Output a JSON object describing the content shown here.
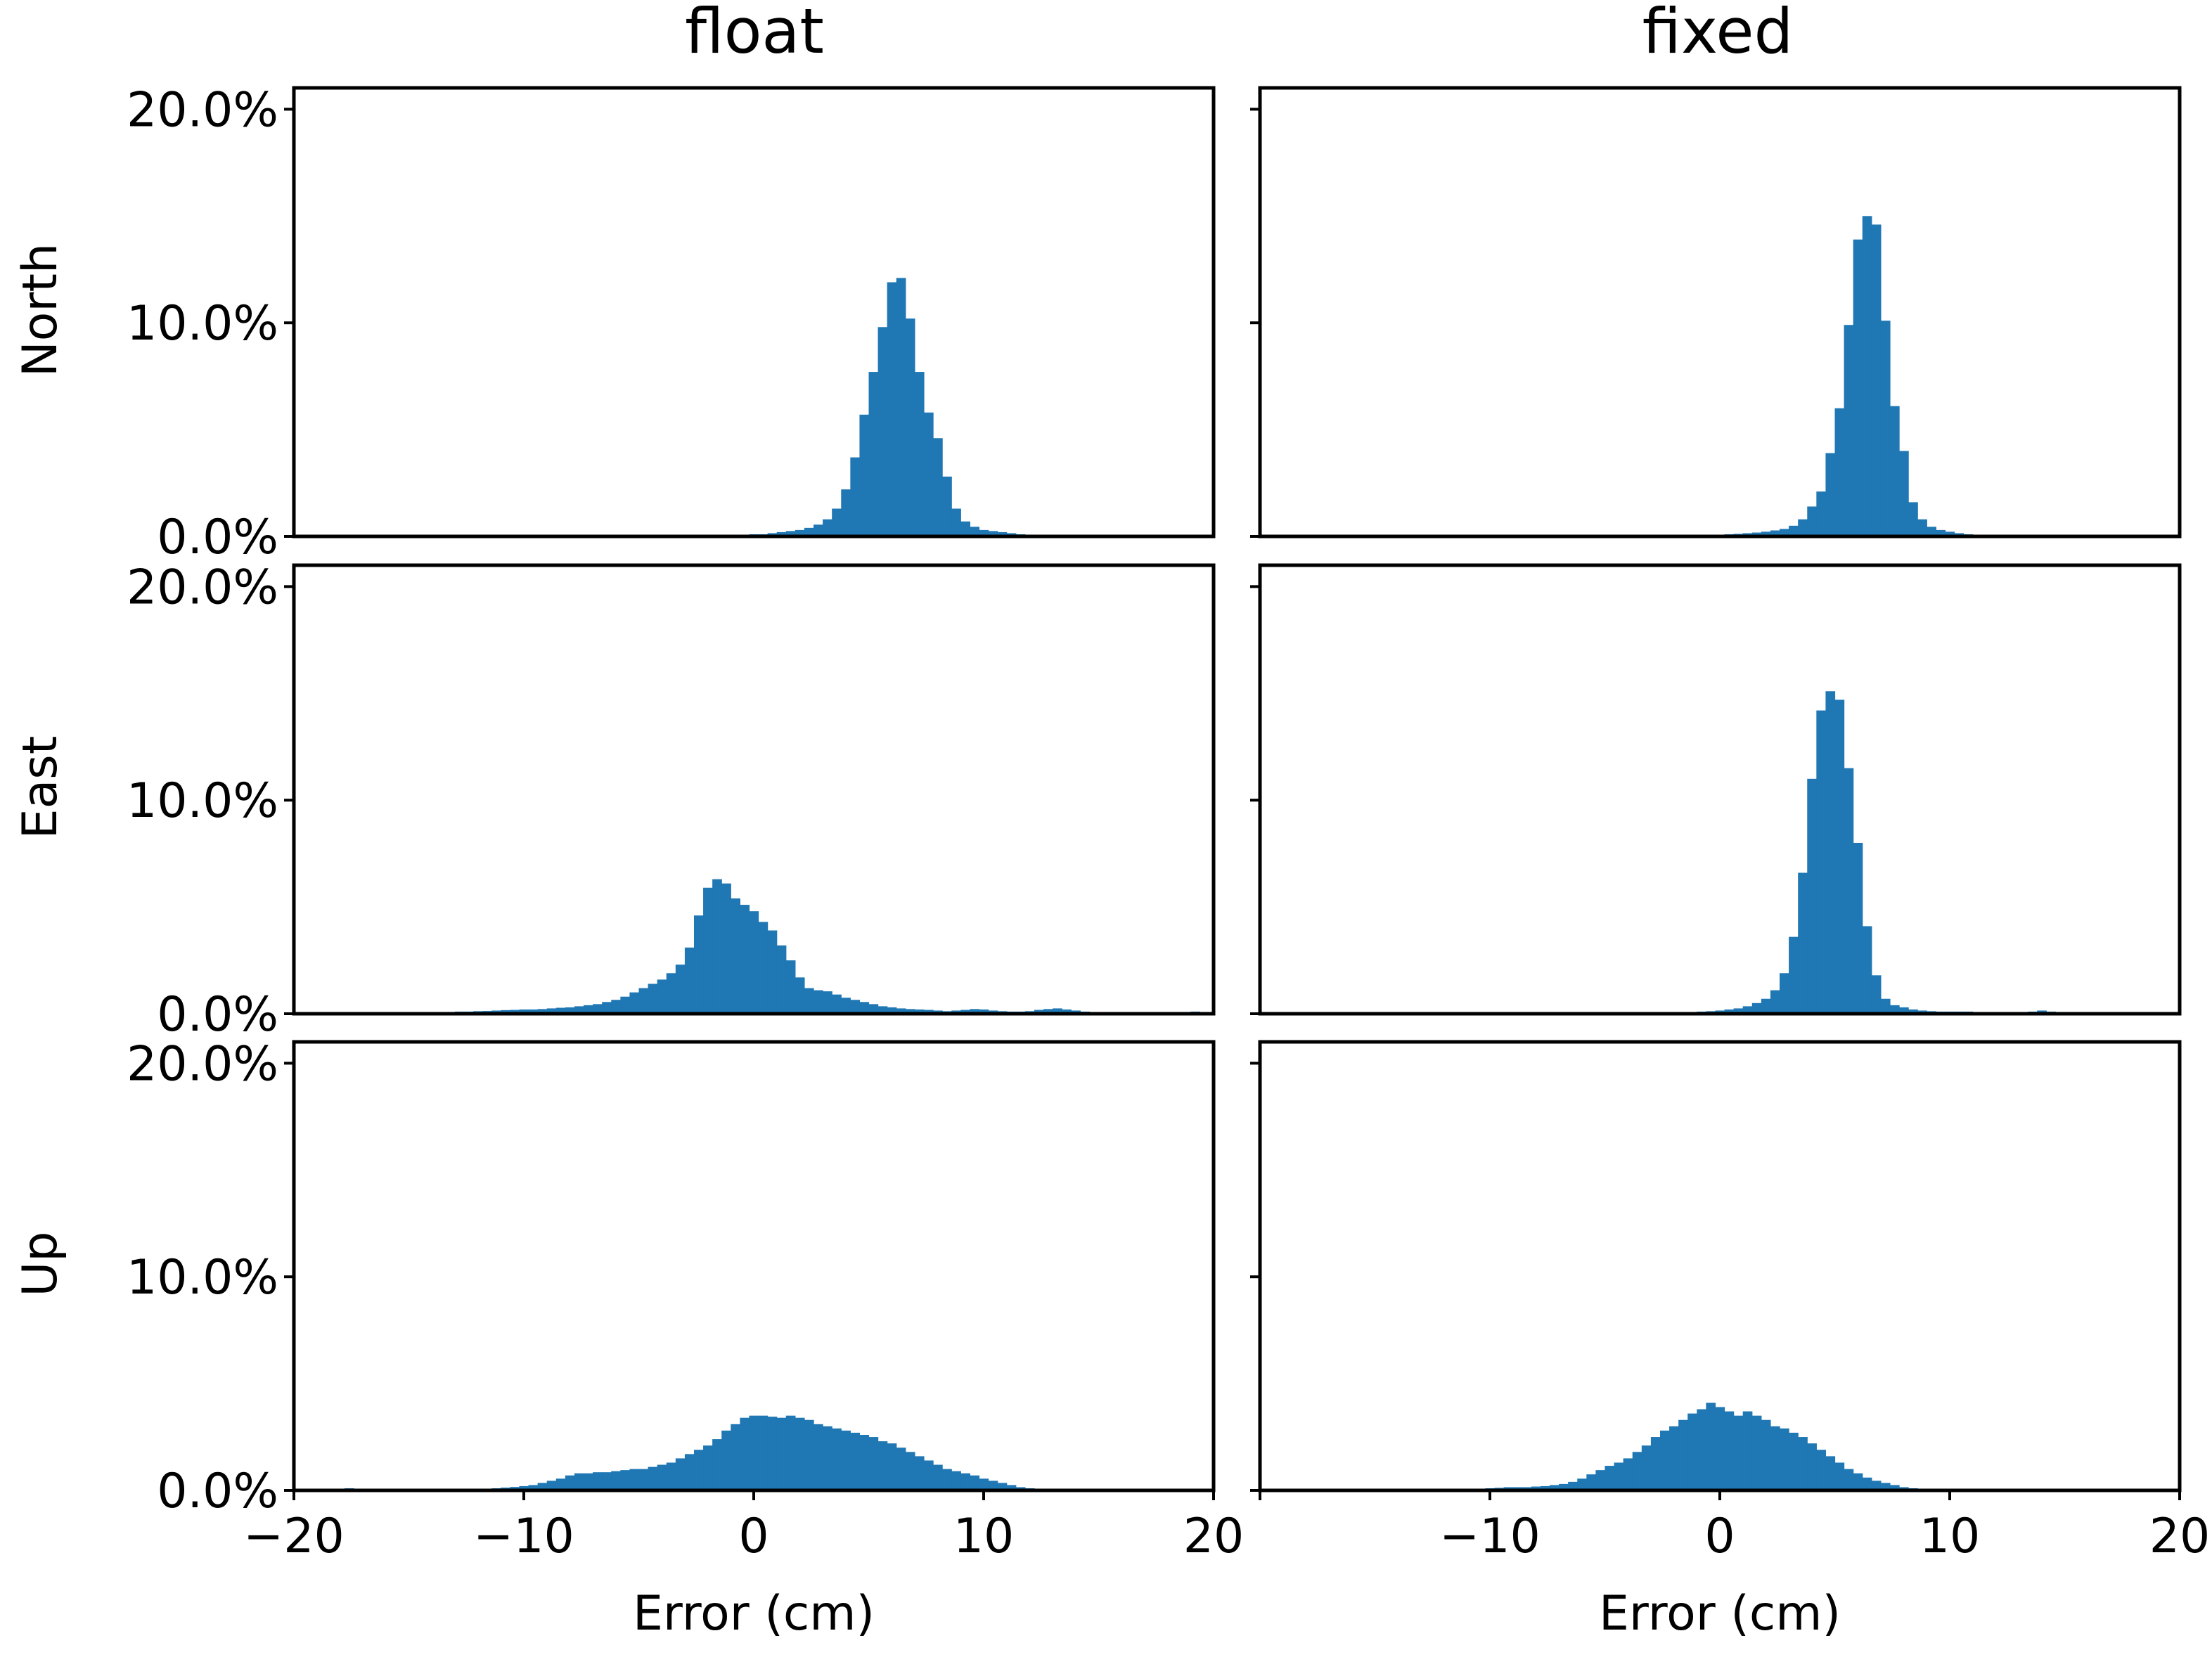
{
  "figure": {
    "type": "histogram-grid",
    "col_titles": [
      "float",
      "fixed"
    ],
    "row_labels": [
      "North",
      "East",
      "Up"
    ],
    "xlabel": "Error (cm)",
    "bar_color": "#1f77b4"
  },
  "chart_data": [
    {
      "type": "bar",
      "title": "float",
      "ylabel": "North",
      "xlabel": "",
      "xlim": [
        -20,
        20
      ],
      "ylim": [
        0,
        21
      ],
      "bin_start": -25.0,
      "bin_width": 0.4,
      "xticks": [],
      "xtick_labels": [],
      "yticks": [
        0,
        10,
        20
      ],
      "ytick_labels": [
        "0.0%",
        "10.0%",
        "20.0%"
      ],
      "values": [
        0,
        0,
        0,
        0,
        0,
        0,
        0,
        0,
        0,
        0,
        0,
        0,
        0,
        0,
        0,
        0,
        0,
        0,
        0,
        0,
        0,
        0,
        0,
        0,
        0,
        0,
        0,
        0,
        0,
        0,
        0,
        0,
        0,
        0,
        0,
        0,
        0,
        0,
        0,
        0,
        0,
        0,
        0,
        0,
        0,
        0,
        0,
        0,
        0,
        0,
        0,
        0,
        0,
        0,
        0,
        0,
        0,
        0,
        0,
        0,
        0,
        0,
        0.1,
        0.1,
        0.15,
        0.2,
        0.25,
        0.3,
        0.4,
        0.55,
        0.8,
        1.3,
        2.2,
        3.7,
        5.7,
        7.7,
        9.8,
        11.9,
        12.1,
        10.2,
        7.7,
        5.8,
        4.6,
        2.8,
        1.3,
        0.7,
        0.45,
        0.3,
        0.25,
        0.2,
        0.15,
        0.1,
        0,
        0,
        0,
        0,
        0,
        0,
        0,
        0,
        0,
        0,
        0,
        0,
        0,
        0,
        0,
        0,
        0,
        0,
        0,
        0,
        0,
        0,
        0,
        0,
        0,
        0,
        0,
        0,
        0,
        0,
        0,
        0,
        0,
        0
      ]
    },
    {
      "type": "bar",
      "title": "fixed",
      "ylabel": "",
      "xlabel": "",
      "xlim": [
        -20,
        20
      ],
      "ylim": [
        0,
        21
      ],
      "bin_start": -25.0,
      "bin_width": 0.4,
      "xticks": [],
      "xtick_labels": [],
      "yticks": [
        0,
        10,
        20
      ],
      "ytick_labels": [
        "",
        "",
        ""
      ],
      "values": [
        0,
        0,
        0,
        0,
        0,
        0,
        0,
        0,
        0,
        0,
        0,
        0,
        0,
        0,
        0,
        0,
        0,
        0,
        0,
        0,
        0,
        0,
        0,
        0,
        0,
        0,
        0,
        0,
        0,
        0,
        0,
        0,
        0,
        0,
        0,
        0,
        0,
        0,
        0,
        0,
        0,
        0,
        0,
        0,
        0,
        0,
        0,
        0,
        0,
        0,
        0,
        0,
        0,
        0,
        0,
        0,
        0,
        0,
        0,
        0,
        0,
        0,
        0,
        0.1,
        0.12,
        0.15,
        0.18,
        0.22,
        0.28,
        0.35,
        0.5,
        0.8,
        1.4,
        2.1,
        3.9,
        6.0,
        9.9,
        13.9,
        15.0,
        14.6,
        10.1,
        6.1,
        4.0,
        1.6,
        0.8,
        0.45,
        0.3,
        0.22,
        0.15,
        0.1,
        0.08,
        0.05,
        0,
        0,
        0,
        0,
        0,
        0,
        0,
        0,
        0,
        0,
        0,
        0,
        0,
        0,
        0,
        0,
        0,
        0,
        0,
        0,
        0,
        0,
        0,
        0,
        0,
        0,
        0,
        0,
        0,
        0,
        0,
        0
      ]
    },
    {
      "type": "bar",
      "title": "",
      "ylabel": "East",
      "xlabel": "",
      "xlim": [
        -20,
        20
      ],
      "ylim": [
        0,
        21
      ],
      "bin_start": -25.0,
      "bin_width": 0.4,
      "xticks": [],
      "xtick_labels": [],
      "yticks": [
        0,
        10,
        20
      ],
      "ytick_labels": [
        "0.0%",
        "10.0%",
        "20.0%"
      ],
      "values": [
        0,
        0,
        0,
        0,
        0,
        0,
        0,
        0,
        0,
        0,
        0,
        0,
        0,
        0,
        0,
        0,
        0,
        0,
        0,
        0,
        0,
        0,
        0,
        0,
        0,
        0,
        0,
        0,
        0,
        0,
        0.1,
        0.1,
        0.12,
        0.13,
        0.15,
        0.17,
        0.18,
        0.2,
        0.2,
        0.22,
        0.25,
        0.28,
        0.3,
        0.35,
        0.4,
        0.45,
        0.55,
        0.65,
        0.8,
        1.0,
        1.2,
        1.4,
        1.6,
        1.9,
        2.3,
        3.1,
        4.6,
        5.9,
        6.3,
        6.1,
        5.4,
        5.1,
        4.8,
        4.3,
        3.9,
        3.2,
        2.5,
        1.7,
        1.2,
        1.1,
        1.05,
        0.9,
        0.75,
        0.65,
        0.55,
        0.45,
        0.35,
        0.3,
        0.25,
        0.22,
        0.2,
        0.18,
        0.15,
        0.12,
        0.15,
        0.18,
        0.22,
        0.2,
        0.15,
        0.12,
        0.1,
        0.1,
        0.12,
        0.18,
        0.22,
        0.25,
        0.2,
        0.15,
        0.1,
        0.08,
        0,
        0,
        0,
        0,
        0,
        0,
        0,
        0,
        0,
        0,
        0.1,
        0,
        0,
        0,
        0,
        0
      ]
    },
    {
      "type": "bar",
      "title": "",
      "ylabel": "",
      "xlabel": "",
      "xlim": [
        -20,
        20
      ],
      "ylim": [
        0,
        21
      ],
      "bin_start": -25.0,
      "bin_width": 0.4,
      "xticks": [],
      "xtick_labels": [],
      "yticks": [
        0,
        10,
        20
      ],
      "ytick_labels": [
        "",
        "",
        ""
      ],
      "values": [
        0,
        0,
        0,
        0,
        0,
        0,
        0,
        0,
        0,
        0,
        0,
        0,
        0,
        0,
        0,
        0,
        0,
        0,
        0,
        0,
        0,
        0,
        0,
        0,
        0,
        0,
        0,
        0,
        0,
        0,
        0,
        0,
        0,
        0,
        0,
        0,
        0,
        0,
        0,
        0,
        0,
        0,
        0,
        0,
        0,
        0,
        0,
        0,
        0,
        0,
        0,
        0,
        0,
        0,
        0,
        0,
        0,
        0,
        0,
        0,
        0.1,
        0.12,
        0.15,
        0.2,
        0.25,
        0.35,
        0.5,
        0.7,
        1.1,
        1.9,
        3.6,
        6.6,
        11.0,
        14.2,
        15.1,
        14.7,
        11.5,
        8.0,
        4.1,
        1.8,
        0.7,
        0.4,
        0.3,
        0.2,
        0.15,
        0.12,
        0.1,
        0.1,
        0.1,
        0.1,
        0.08,
        0.08,
        0.05,
        0.05,
        0,
        0,
        0.1,
        0.15,
        0.1,
        0,
        0,
        0,
        0,
        0,
        0,
        0,
        0,
        0,
        0,
        0,
        0,
        0,
        0,
        0,
        0,
        0,
        0,
        0,
        0,
        0,
        0,
        0,
        0,
        0,
        0,
        0
      ]
    },
    {
      "type": "bar",
      "title": "",
      "ylabel": "Up",
      "xlabel": "Error (cm)",
      "xlim": [
        -20,
        20
      ],
      "ylim": [
        0,
        21
      ],
      "bin_start": -25.0,
      "bin_width": 0.4,
      "xticks": [
        -20,
        -10,
        0,
        10,
        20
      ],
      "xtick_labels": [
        "−20",
        "−10",
        "0",
        "10",
        "20"
      ],
      "yticks": [
        0,
        10,
        20
      ],
      "ytick_labels": [
        "0.0%",
        "10.0%",
        "20.0%"
      ],
      "values": [
        0,
        0,
        0,
        0,
        0,
        0,
        0,
        0,
        0,
        0,
        0,
        0,
        0,
        0,
        0,
        0,
        0,
        0,
        0.1,
        0,
        0,
        0,
        0,
        0,
        0,
        0,
        0,
        0,
        0,
        0,
        0,
        0.05,
        0.05,
        0.08,
        0.1,
        0.13,
        0.16,
        0.2,
        0.25,
        0.35,
        0.45,
        0.55,
        0.7,
        0.8,
        0.8,
        0.85,
        0.85,
        0.9,
        0.95,
        1.0,
        1.0,
        1.1,
        1.2,
        1.3,
        1.5,
        1.7,
        1.9,
        2.1,
        2.4,
        2.8,
        3.1,
        3.4,
        3.5,
        3.5,
        3.45,
        3.4,
        3.5,
        3.4,
        3.3,
        3.1,
        3.0,
        2.9,
        2.8,
        2.7,
        2.6,
        2.5,
        2.3,
        2.2,
        2.0,
        1.8,
        1.6,
        1.4,
        1.2,
        1.0,
        0.9,
        0.8,
        0.7,
        0.55,
        0.45,
        0.35,
        0.25,
        0.15,
        0.1,
        0.05,
        0,
        0,
        0,
        0,
        0,
        0,
        0,
        0,
        0,
        0,
        0,
        0,
        0,
        0,
        0,
        0,
        0,
        0,
        0,
        0,
        0,
        0,
        0,
        0,
        0,
        0
      ]
    },
    {
      "type": "bar",
      "title": "",
      "ylabel": "",
      "xlabel": "Error (cm)",
      "xlim": [
        -20,
        20
      ],
      "ylim": [
        0,
        21
      ],
      "bin_start": -25.0,
      "bin_width": 0.4,
      "xticks": [
        -20,
        -10,
        0,
        10,
        20
      ],
      "xtick_labels": [
        "",
        "−10",
        "0",
        "10",
        "20"
      ],
      "yticks": [
        0,
        10,
        20
      ],
      "ytick_labels": [
        "",
        "",
        ""
      ],
      "values": [
        0,
        0,
        0,
        0,
        0,
        0,
        0,
        0,
        0,
        0,
        0,
        0,
        0,
        0,
        0,
        0,
        0,
        0,
        0,
        0,
        0,
        0,
        0,
        0,
        0,
        0,
        0,
        0,
        0,
        0,
        0,
        0,
        0,
        0,
        0,
        0,
        0,
        0.1,
        0.12,
        0.15,
        0.15,
        0.15,
        0.18,
        0.2,
        0.25,
        0.3,
        0.4,
        0.55,
        0.75,
        0.95,
        1.15,
        1.3,
        1.5,
        1.8,
        2.1,
        2.5,
        2.8,
        3.0,
        3.3,
        3.6,
        3.8,
        4.1,
        3.9,
        3.7,
        3.5,
        3.7,
        3.5,
        3.3,
        3.0,
        2.9,
        2.7,
        2.5,
        2.2,
        1.9,
        1.6,
        1.3,
        1.0,
        0.8,
        0.6,
        0.45,
        0.35,
        0.25,
        0.15,
        0.1,
        0.05,
        0,
        0,
        0,
        0,
        0,
        0,
        0,
        0,
        0,
        0,
        0,
        0,
        0,
        0,
        0,
        0,
        0,
        0,
        0,
        0,
        0,
        0,
        0,
        0,
        0,
        0,
        0,
        0,
        0,
        0,
        0,
        0,
        0,
        0,
        0,
        0,
        0,
        0,
        0,
        0,
        0,
        0
      ]
    }
  ]
}
